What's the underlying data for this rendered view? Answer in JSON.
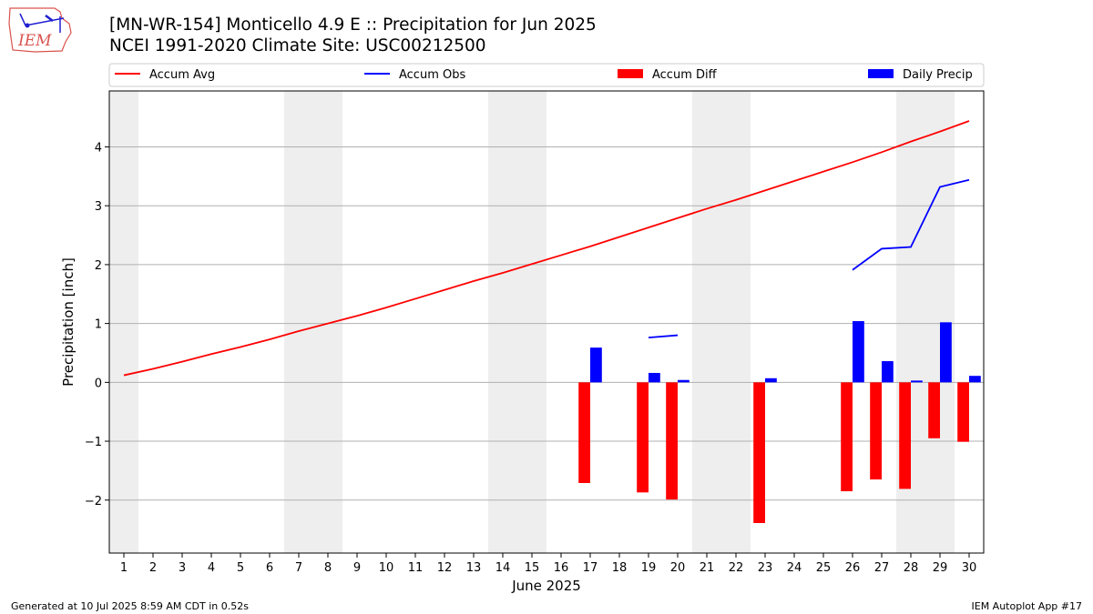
{
  "header": {
    "title": "[MN-WR-154] Monticello 4.9 E :: Precipitation for Jun 2025",
    "subtitle": "NCEI 1991-2020 Climate Site: USC00212500",
    "logo_text": "IEM"
  },
  "footer": {
    "generated": "Generated at 10 Jul 2025 8:59 AM CDT in 0.52s",
    "app": "IEM Autoplot App #17"
  },
  "chart_data": {
    "type": "bar",
    "xlabel": "June 2025",
    "ylabel": "Precipitation [inch]",
    "xlim": [
      0.5,
      30.5
    ],
    "ylim": [
      -2.9,
      4.95
    ],
    "yticks": [
      -2,
      -1,
      0,
      1,
      2,
      3,
      4
    ],
    "ytick_labels": [
      "−2",
      "−1",
      "0",
      "1",
      "2",
      "3",
      "4"
    ],
    "x_ticks": [
      1,
      2,
      3,
      4,
      5,
      6,
      7,
      8,
      9,
      10,
      11,
      12,
      13,
      14,
      15,
      16,
      17,
      18,
      19,
      20,
      21,
      22,
      23,
      24,
      25,
      26,
      27,
      28,
      29,
      30
    ],
    "grid": "horizontal",
    "legend_placement": "top",
    "weekend_shading": [
      [
        0.5,
        1.5
      ],
      [
        6.5,
        8.5
      ],
      [
        13.5,
        15.5
      ],
      [
        20.5,
        22.5
      ],
      [
        27.5,
        29.5
      ]
    ],
    "colors": {
      "avg": "#ff0000",
      "obs": "#0000ff",
      "diff": "#ff0000",
      "daily": "#0000ff",
      "shade": "#eeeeee",
      "grid": "#b0b0b0"
    },
    "legend": [
      "Accum Avg",
      "Accum Obs",
      "Accum Diff",
      "Daily Precip"
    ],
    "accum_avg": {
      "x": [
        1,
        2,
        3,
        4,
        5,
        6,
        7,
        8,
        9,
        10,
        11,
        12,
        13,
        14,
        15,
        16,
        17,
        18,
        19,
        20,
        21,
        22,
        23,
        24,
        25,
        26,
        27,
        28,
        29,
        30
      ],
      "y": [
        0.12,
        0.23,
        0.35,
        0.48,
        0.6,
        0.73,
        0.87,
        1.0,
        1.13,
        1.27,
        1.42,
        1.57,
        1.72,
        1.86,
        2.01,
        2.16,
        2.31,
        2.47,
        2.63,
        2.79,
        2.95,
        3.1,
        3.26,
        3.42,
        3.58,
        3.74,
        3.91,
        4.09,
        4.26,
        4.44
      ]
    },
    "accum_obs": [
      {
        "x": [
          19,
          20
        ],
        "y": [
          0.76,
          0.8
        ]
      },
      {
        "x": [
          26,
          27,
          28,
          29,
          30
        ],
        "y": [
          1.91,
          2.27,
          2.3,
          3.32,
          3.44
        ]
      }
    ],
    "accum_diff": {
      "x": [
        17,
        19,
        20,
        23,
        26,
        27,
        28,
        29,
        30
      ],
      "y": [
        -1.71,
        -1.87,
        -1.99,
        -2.39,
        -1.85,
        -1.65,
        -1.81,
        -0.95,
        -1.01
      ]
    },
    "daily_precip": {
      "x": [
        17,
        19,
        20,
        23,
        26,
        27,
        28,
        29,
        30
      ],
      "y": [
        0.59,
        0.16,
        0.04,
        0.07,
        1.04,
        0.36,
        0.03,
        1.02,
        0.11
      ]
    }
  }
}
